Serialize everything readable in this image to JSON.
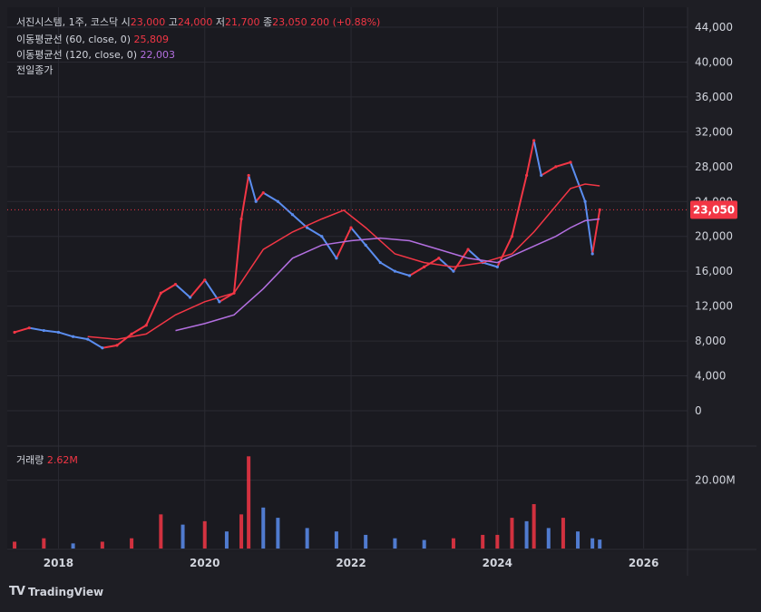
{
  "header": {
    "symbol": "서진시스템, 1주, 코스닥",
    "o_label": "시",
    "o_value": "23,000",
    "h_label": "고",
    "h_value": "24,000",
    "l_label": "저",
    "l_value": "21,700",
    "c_label": "종",
    "c_value": "23,050",
    "change": "200 (+0.88%)"
  },
  "indicators": [
    {
      "label": "이동평균선 (60, close, 0)",
      "value": "25,809",
      "color": "#f23645"
    },
    {
      "label": "이동평균선 (120, close, 0)",
      "value": "22,003",
      "color": "#b36fe0"
    },
    {
      "label": "전일종가",
      "value": ""
    }
  ],
  "volume_legend": {
    "label": "거래량",
    "value": "2.62M"
  },
  "price_badge": "23,050",
  "branding": "TradingView",
  "colors": {
    "background": "#1e1e24",
    "up": "#f23645",
    "down": "#5b8def",
    "ma60": "#f23645",
    "ma120": "#b36fe0",
    "grid": "#2a2a32",
    "badge": "#f23645"
  },
  "chart_data": {
    "type": "line",
    "title": "",
    "x_ticks": [
      "2018",
      "2020",
      "2022",
      "2024",
      "2026"
    ],
    "y_ticks": [
      "0",
      "4,000",
      "8,000",
      "12,000",
      "16,000",
      "20,000",
      "24,000",
      "28,000",
      "32,000",
      "36,000",
      "40,000",
      "44,000"
    ],
    "ylim": [
      0,
      44000
    ],
    "xlim": [
      2017.3,
      2026.6
    ],
    "last_price": 23050,
    "price_series": {
      "name": "",
      "x": [
        2017.4,
        2017.6,
        2017.8,
        2018.0,
        2018.2,
        2018.4,
        2018.6,
        2018.8,
        2019.0,
        2019.2,
        2019.4,
        2019.6,
        2019.8,
        2020.0,
        2020.2,
        2020.4,
        2020.5,
        2020.6,
        2020.7,
        2020.8,
        2021.0,
        2021.2,
        2021.4,
        2021.6,
        2021.8,
        2022.0,
        2022.2,
        2022.4,
        2022.6,
        2022.8,
        2023.0,
        2023.2,
        2023.4,
        2023.6,
        2023.8,
        2024.0,
        2024.2,
        2024.4,
        2024.5,
        2024.6,
        2024.8,
        2025.0,
        2025.2,
        2025.3,
        2025.4
      ],
      "values": [
        9000,
        9500,
        9200,
        9000,
        8500,
        8200,
        7200,
        7500,
        8800,
        9800,
        13500,
        14500,
        13000,
        15000,
        12500,
        13500,
        22000,
        27000,
        24000,
        25000,
        24000,
        22500,
        21000,
        20000,
        17500,
        21000,
        19000,
        17000,
        16000,
        15500,
        16500,
        17500,
        16000,
        18500,
        17000,
        16500,
        20000,
        27000,
        31000,
        27000,
        28000,
        28500,
        24000,
        18000,
        23050
      ]
    },
    "ma60": {
      "name": "이동평균선 (60, close, 0)",
      "x": [
        2018.4,
        2018.8,
        2019.2,
        2019.6,
        2020.0,
        2020.4,
        2020.8,
        2021.2,
        2021.6,
        2021.9,
        2022.2,
        2022.6,
        2023.0,
        2023.4,
        2023.8,
        2024.2,
        2024.5,
        2024.8,
        2025.0,
        2025.2,
        2025.4
      ],
      "values": [
        8500,
        8200,
        8800,
        11000,
        12500,
        13500,
        18500,
        20500,
        22000,
        23000,
        21000,
        18000,
        17000,
        16500,
        17000,
        18000,
        20500,
        23500,
        25500,
        26000,
        25800
      ]
    },
    "ma120": {
      "name": "이동평균선 (120, close, 0)",
      "x": [
        2019.6,
        2020.0,
        2020.4,
        2020.8,
        2021.2,
        2021.6,
        2022.0,
        2022.4,
        2022.8,
        2023.2,
        2023.6,
        2024.0,
        2024.4,
        2024.8,
        2025.0,
        2025.2,
        2025.4
      ],
      "values": [
        9200,
        10000,
        11000,
        14000,
        17500,
        19000,
        19500,
        19800,
        19500,
        18500,
        17500,
        17000,
        18500,
        20000,
        21000,
        21800,
        22003
      ]
    },
    "volume": {
      "name": "거래량",
      "y_ticks": [
        "20.00M"
      ],
      "ylim": [
        0,
        30
      ],
      "unit": "M",
      "x": [
        2017.4,
        2017.8,
        2018.2,
        2018.6,
        2019.0,
        2019.4,
        2019.7,
        2020.0,
        2020.3,
        2020.5,
        2020.6,
        2020.8,
        2021.0,
        2021.4,
        2021.8,
        2022.2,
        2022.6,
        2023.0,
        2023.4,
        2023.8,
        2024.0,
        2024.2,
        2024.4,
        2024.5,
        2024.7,
        2024.9,
        2025.1,
        2025.3,
        2025.4
      ],
      "values": [
        2,
        3,
        1.5,
        2,
        3,
        10,
        7,
        8,
        5,
        10,
        27,
        12,
        9,
        6,
        5,
        4,
        3,
        2.5,
        3,
        4,
        4,
        9,
        8,
        13,
        6,
        9,
        5,
        3,
        2.62
      ]
    }
  }
}
